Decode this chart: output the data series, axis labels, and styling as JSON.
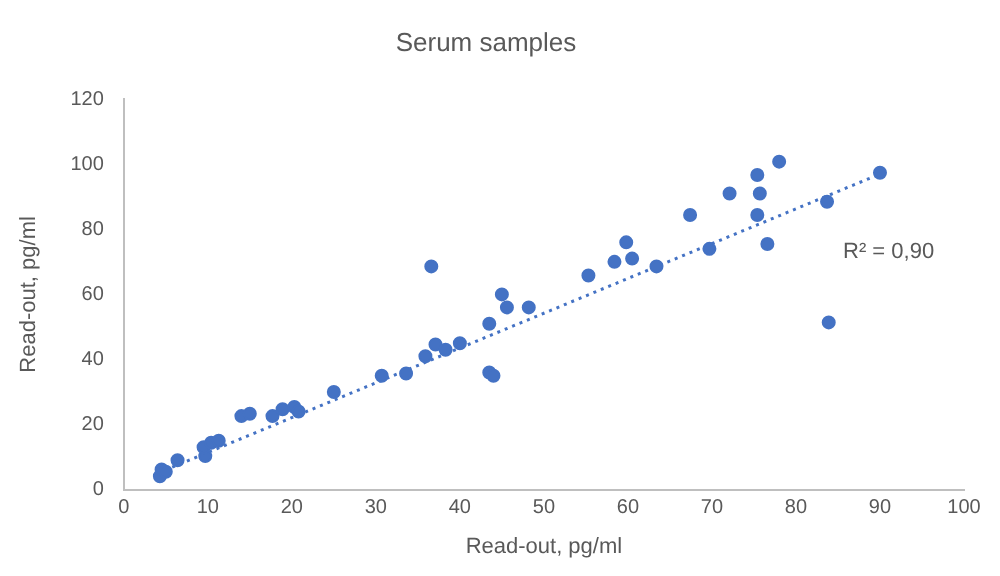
{
  "chart_data": {
    "type": "scatter",
    "title": "Serum samples",
    "xlabel": "Read-out, pg/ml",
    "ylabel": "Read-out, pg/ml",
    "xlim": [
      0,
      100
    ],
    "xticks": [
      0,
      10,
      20,
      30,
      40,
      50,
      60,
      70,
      80,
      90,
      100
    ],
    "ylim": [
      0,
      120
    ],
    "yticks": [
      0,
      20,
      40,
      60,
      80,
      100,
      120
    ],
    "grid": false,
    "legend": false,
    "series": [
      {
        "color": "#4472c4",
        "marker": "circle",
        "x": [
          4.3,
          4.5,
          5,
          6.4,
          9.7,
          9.5,
          10.4,
          11.3,
          14,
          15,
          17.7,
          18.9,
          20.3,
          20.8,
          25,
          30.7,
          33.6,
          35.9,
          37.1,
          38.3,
          36.6,
          40,
          43.5,
          45,
          45.6,
          48.2,
          43.5,
          44,
          55.3,
          58.4,
          59.8,
          60.5,
          63.4,
          67.4,
          69.7,
          72.1,
          75.4,
          75.7,
          75.4,
          76.6,
          78,
          83.7,
          83.9,
          90
        ],
        "values": [
          4.1,
          6.2,
          5.5,
          9,
          10.3,
          13,
          14.4,
          15,
          22.6,
          23.3,
          22.6,
          24.7,
          25.4,
          24,
          30,
          35,
          35.7,
          41,
          44.6,
          43,
          68.6,
          45,
          51,
          60,
          56,
          56,
          36,
          35,
          65.8,
          70,
          76,
          71,
          68.6,
          84.4,
          74,
          91,
          96.7,
          91,
          84.4,
          75.5,
          100.8,
          88.5,
          51.4,
          97.4
        ]
      },
      {
        "type": "line",
        "color": "#4472c4",
        "line_style": "dotted",
        "marker": "none",
        "x": [
          4,
          90
        ],
        "values": [
          5,
          97
        ]
      }
    ],
    "annotations": [
      "R² = 0,90"
    ]
  }
}
